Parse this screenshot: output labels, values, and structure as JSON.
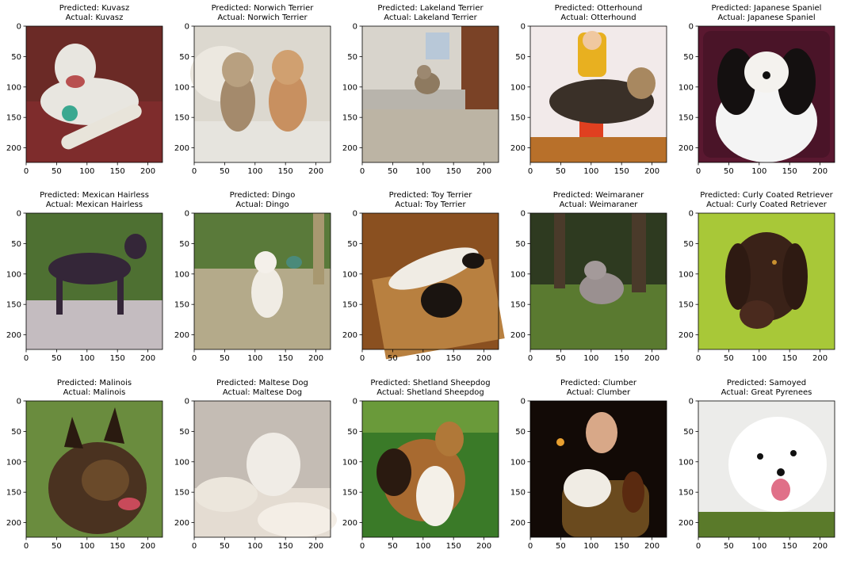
{
  "chart_data": [
    {
      "type": "image",
      "title_predicted": "Predicted: Kuvasz",
      "title_actual": "Actual: Kuvasz",
      "xticks": [
        0,
        50,
        100,
        150,
        200
      ],
      "yticks": [
        0,
        50,
        100,
        150,
        200
      ],
      "xlim": [
        0,
        224
      ],
      "ylim": [
        224,
        0
      ],
      "image_subject": "white dog lying on a red blanket holding a bone toy",
      "colors": {
        "bg": "#6b2a26",
        "main": "#e8e6e0",
        "accent": "#b83a3a"
      }
    },
    {
      "type": "image",
      "title_predicted": "Predicted: Norwich Terrier",
      "title_actual": "Actual: Norwich Terrier",
      "xticks": [
        0,
        50,
        100,
        150,
        200
      ],
      "yticks": [
        0,
        50,
        100,
        150,
        200
      ],
      "xlim": [
        0,
        224
      ],
      "ylim": [
        224,
        0
      ],
      "image_subject": "two small tan terriers sitting on a white bed",
      "colors": {
        "bg": "#dcd8cf",
        "main": "#b48a62",
        "accent": "#8c7058"
      }
    },
    {
      "type": "image",
      "title_predicted": "Predicted: Lakeland Terrier",
      "title_actual": "Actual: Lakeland Terrier",
      "xticks": [
        0,
        50,
        100,
        150,
        200
      ],
      "yticks": [
        0,
        50,
        100,
        150,
        200
      ],
      "xlim": [
        0,
        224
      ],
      "ylim": [
        224,
        0
      ],
      "image_subject": "small terrier standing on a kitchen floor near a doorway",
      "colors": {
        "bg": "#cfcac0",
        "main": "#9c8a70",
        "accent": "#7a4a2a"
      }
    },
    {
      "type": "image",
      "title_predicted": "Predicted: Otterhound",
      "title_actual": "Actual: Otterhound",
      "xticks": [
        0,
        50,
        100,
        150,
        200
      ],
      "yticks": [
        0,
        50,
        100,
        150,
        200
      ],
      "xlim": [
        0,
        224
      ],
      "ylim": [
        224,
        0
      ],
      "image_subject": "child in yellow shirt standing behind a large shaggy dog",
      "colors": {
        "bg": "#f0e8e8",
        "main": "#3a3028",
        "accent": "#e8b020"
      }
    },
    {
      "type": "image",
      "title_predicted": "Predicted: Japanese Spaniel",
      "title_actual": "Actual: Japanese Spaniel",
      "xticks": [
        0,
        50,
        100,
        150,
        200
      ],
      "yticks": [
        0,
        50,
        100,
        150,
        200
      ],
      "xlim": [
        0,
        224
      ],
      "ylim": [
        224,
        0
      ],
      "image_subject": "black and white long haired spaniel portrait",
      "colors": {
        "bg": "#5a1830",
        "main": "#f4f4f4",
        "accent": "#101010"
      }
    },
    {
      "type": "image",
      "title_predicted": "Predicted: Mexican Hairless",
      "title_actual": "Actual: Mexican Hairless",
      "xticks": [
        0,
        50,
        100,
        150,
        200
      ],
      "yticks": [
        0,
        50,
        100,
        150,
        200
      ],
      "xlim": [
        0,
        224
      ],
      "ylim": [
        224,
        0
      ],
      "image_subject": "dark hairless dog standing on a rock in front of greenery",
      "colors": {
        "bg": "#5c7a3a",
        "main": "#3a2a38",
        "accent": "#c8c0c8"
      }
    },
    {
      "type": "image",
      "title_predicted": "Predicted: Dingo",
      "title_actual": "Actual: Dingo",
      "xticks": [
        0,
        50,
        100,
        150,
        200
      ],
      "yticks": [
        0,
        50,
        100,
        150,
        200
      ],
      "xlim": [
        0,
        224
      ],
      "ylim": [
        224,
        0
      ],
      "image_subject": "white dog lying on a brick patio near plants",
      "colors": {
        "bg": "#b0a888",
        "main": "#f0ece4",
        "accent": "#4a6a30"
      }
    },
    {
      "type": "image",
      "title_predicted": "Predicted: Toy Terrier",
      "title_actual": "Actual: Toy Terrier",
      "xticks": [
        0,
        50,
        100,
        150,
        200
      ],
      "yticks": [
        0,
        50,
        100,
        150,
        200
      ],
      "xlim": [
        0,
        224
      ],
      "ylim": [
        224,
        0
      ],
      "image_subject": "black and white small dog lying on a woven mat in sunlight",
      "colors": {
        "bg": "#a86a30",
        "main": "#1a1410",
        "accent": "#f0e8d8"
      }
    },
    {
      "type": "image",
      "title_predicted": "Predicted: Weimaraner",
      "title_actual": "Actual: Weimaraner",
      "xticks": [
        0,
        50,
        100,
        150,
        200
      ],
      "yticks": [
        0,
        50,
        100,
        150,
        200
      ],
      "xlim": [
        0,
        224
      ],
      "ylim": [
        224,
        0
      ],
      "image_subject": "grey dog walking in a forest",
      "colors": {
        "bg": "#3a4a28",
        "main": "#9a9090",
        "accent": "#6a8a3a"
      }
    },
    {
      "type": "image",
      "title_predicted": "Predicted: Curly Coated Retriever",
      "title_actual": "Actual: Curly Coated Retriever",
      "xticks": [
        0,
        50,
        100,
        150,
        200
      ],
      "yticks": [
        0,
        50,
        100,
        150,
        200
      ],
      "xlim": [
        0,
        224
      ],
      "ylim": [
        224,
        0
      ],
      "image_subject": "brown curly coated dog head on green background",
      "colors": {
        "bg": "#98c030",
        "main": "#3a2218",
        "accent": "#c8d848"
      }
    },
    {
      "type": "image",
      "title_predicted": "Predicted: Malinois",
      "title_actual": "Actual: Malinois",
      "xticks": [
        0,
        50,
        100,
        150,
        200
      ],
      "yticks": [
        0,
        50,
        100,
        150,
        200
      ],
      "xlim": [
        0,
        224
      ],
      "ylim": [
        224,
        0
      ],
      "image_subject": "malinois dog with tongue out on grass",
      "colors": {
        "bg": "#6a8a40",
        "main": "#3a2a1a",
        "accent": "#c04050"
      }
    },
    {
      "type": "image",
      "title_predicted": "Predicted: Maltese Dog",
      "title_actual": "Actual: Maltese Dog",
      "xticks": [
        0,
        50,
        100,
        150,
        200
      ],
      "yticks": [
        0,
        50,
        100,
        150,
        200
      ],
      "xlim": [
        0,
        224
      ],
      "ylim": [
        224,
        0
      ],
      "image_subject": "fluffy white dog on white bedding",
      "colors": {
        "bg": "#c8c0b8",
        "main": "#f0ece6",
        "accent": "#5a4a40"
      }
    },
    {
      "type": "image",
      "title_predicted": "Predicted: Shetland Sheepdog",
      "title_actual": "Actual: Shetland Sheepdog",
      "xticks": [
        0,
        50,
        100,
        150,
        200
      ],
      "yticks": [
        0,
        50,
        100,
        150,
        200
      ],
      "xlim": [
        0,
        224
      ],
      "ylim": [
        224,
        0
      ],
      "image_subject": "sable and white sheltie sitting on grass",
      "colors": {
        "bg": "#3a7a28",
        "main": "#a06a30",
        "accent": "#f4f0e8"
      }
    },
    {
      "type": "image",
      "title_predicted": "Predicted: Clumber",
      "title_actual": "Actual: Clumber",
      "xticks": [
        0,
        50,
        100,
        150,
        200
      ],
      "yticks": [
        0,
        50,
        100,
        150,
        200
      ],
      "xlim": [
        0,
        224
      ],
      "ylim": [
        224,
        0
      ],
      "image_subject": "man holding a white dog in a dark room",
      "colors": {
        "bg": "#140c08",
        "main": "#6a4a20",
        "accent": "#f0ece4"
      }
    },
    {
      "type": "image",
      "title_predicted": "Predicted: Samoyed",
      "title_actual": "Actual: Great Pyrenees",
      "xticks": [
        0,
        50,
        100,
        150,
        200
      ],
      "yticks": [
        0,
        50,
        100,
        150,
        200
      ],
      "xlim": [
        0,
        224
      ],
      "ylim": [
        224,
        0
      ],
      "image_subject": "white fluffy dog face with tongue out",
      "colors": {
        "bg": "#ecece8",
        "main": "#ffffff",
        "accent": "#4a6a20"
      }
    }
  ]
}
